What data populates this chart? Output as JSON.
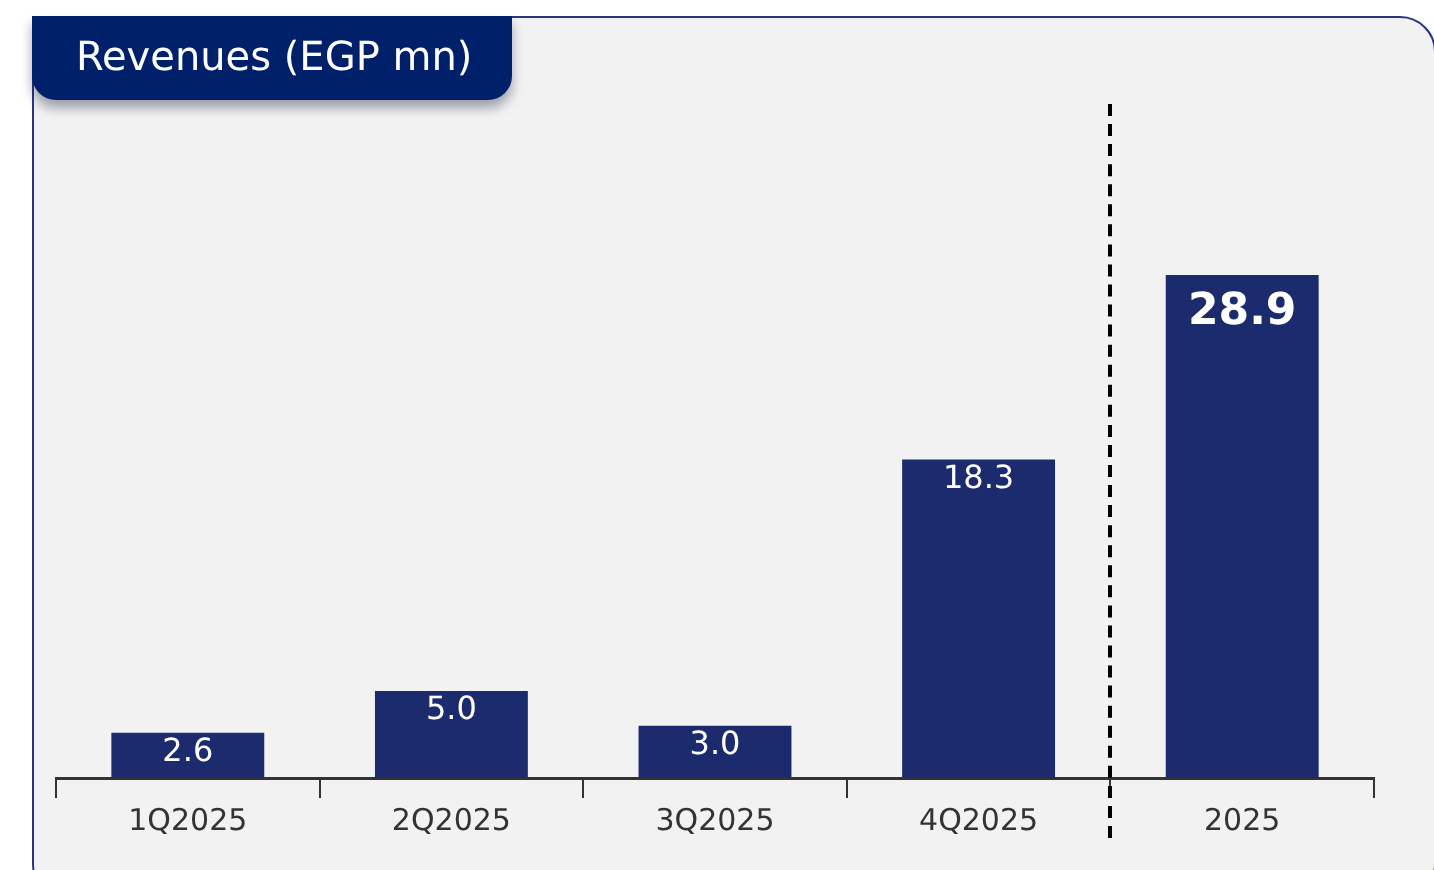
{
  "chart_data": {
    "type": "bar",
    "title": "Revenues (EGP mn)",
    "categories": [
      "1Q2025",
      "2Q2025",
      "3Q2025",
      "4Q2025",
      "2025"
    ],
    "values": [
      2.6,
      5.0,
      3.0,
      18.3,
      28.9
    ],
    "value_labels": [
      "2.6",
      "5.0",
      "3.0",
      "18.3",
      "28.9"
    ],
    "colors": [
      "#1c2a6e",
      "#1c2a6e",
      "#1c2a6e",
      "#1c2a6e",
      "#1c2a6e"
    ],
    "grid": false,
    "legend": false
  }
}
